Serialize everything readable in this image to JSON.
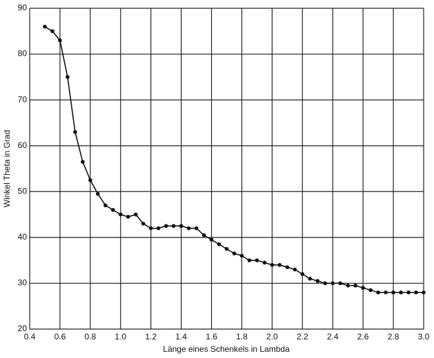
{
  "chart_data": {
    "type": "line",
    "xlabel": "Länge eines Schenkels in Lambda",
    "ylabel": "Winkel Theta in Grad",
    "x": [
      0.5,
      0.55,
      0.6,
      0.65,
      0.7,
      0.75,
      0.8,
      0.85,
      0.9,
      0.95,
      1.0,
      1.05,
      1.1,
      1.15,
      1.2,
      1.25,
      1.3,
      1.35,
      1.4,
      1.45,
      1.5,
      1.55,
      1.6,
      1.65,
      1.7,
      1.75,
      1.8,
      1.85,
      1.9,
      1.95,
      2.0,
      2.05,
      2.1,
      2.15,
      2.2,
      2.25,
      2.3,
      2.35,
      2.4,
      2.45,
      2.5,
      2.55,
      2.6,
      2.65,
      2.7,
      2.75,
      2.8,
      2.85,
      2.9,
      2.95,
      3.0
    ],
    "values": [
      86,
      85,
      83,
      75,
      63,
      56.5,
      52.5,
      49.5,
      47,
      46,
      45,
      44.5,
      45,
      43,
      42,
      42,
      42.5,
      42.5,
      42.5,
      42,
      42,
      40.5,
      39.5,
      38.5,
      37.5,
      36.5,
      36,
      35,
      35,
      34.5,
      34,
      34,
      33.5,
      33,
      32,
      31,
      30.5,
      30,
      30,
      30,
      29.5,
      29.5,
      29,
      28.5,
      28,
      28,
      28,
      28,
      28,
      28,
      28
    ],
    "color": "#111111",
    "xlim": [
      0.4,
      3.0
    ],
    "ylim": [
      20,
      90
    ],
    "xticks": [
      0.4,
      0.6,
      0.8,
      {
        "value": 1.0,
        "label": "1.0"
      },
      1.2,
      1.4,
      1.6,
      1.8,
      {
        "value": 2.0,
        "label": "2.0"
      },
      2.2,
      2.4,
      2.6,
      2.8,
      {
        "value": 3.0,
        "label": "3.0"
      }
    ],
    "yticks": [
      20,
      30,
      40,
      50,
      60,
      70,
      80,
      90
    ],
    "grid": true
  }
}
